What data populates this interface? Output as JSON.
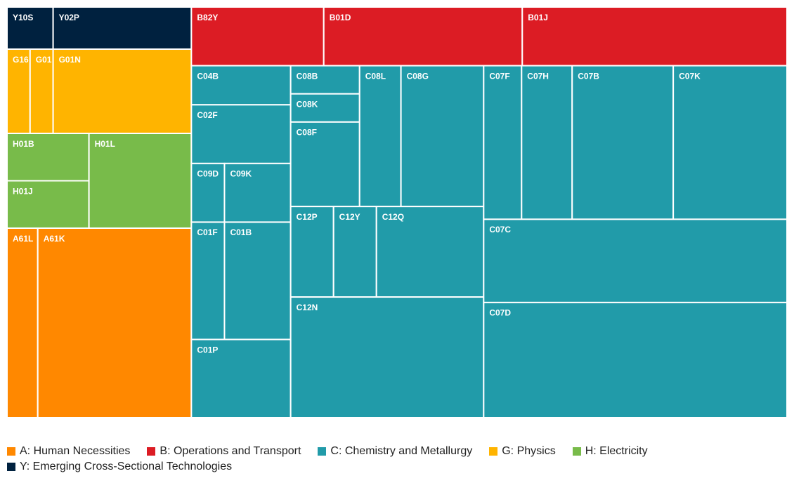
{
  "chart_data": {
    "type": "treemap",
    "series": [
      {
        "name": "A: Human Necessities",
        "color": "#ff8800",
        "labels": [
          "A61L",
          "A61K"
        ],
        "values": [
          3,
          15
        ]
      },
      {
        "name": "B: Operations and Transport",
        "color": "#dc1c24",
        "labels": [
          "B82Y",
          "B01D",
          "B01J"
        ],
        "values": [
          4,
          6,
          8
        ]
      },
      {
        "name": "C: Chemistry and Metallurgy",
        "color": "#219ba9",
        "labels": [
          "C04B",
          "C02F",
          "C09D",
          "C09K",
          "C01F",
          "C01B",
          "C01P",
          "C08B",
          "C08K",
          "C08F",
          "C08L",
          "C08G",
          "C12P",
          "C12Y",
          "C12Q",
          "C12N",
          "C07F",
          "C07H",
          "C07B",
          "C07K",
          "C07C",
          "C07D"
        ],
        "values": [
          2,
          3,
          1,
          2,
          2,
          4,
          4,
          1,
          1,
          3,
          3,
          6,
          2,
          2,
          5,
          12,
          3,
          4,
          8,
          9,
          13,
          18
        ]
      },
      {
        "name": "G: Physics",
        "color": "#ffb400",
        "labels": [
          "G16",
          "G01",
          "G01N"
        ],
        "values": [
          1,
          1,
          6
        ]
      },
      {
        "name": "H: Electricity",
        "color": "#78bb4a",
        "labels": [
          "H01B",
          "H01J",
          "H01L"
        ],
        "values": [
          2,
          2,
          5
        ]
      },
      {
        "name": "Y: Emerging Cross-Sectional Technologies",
        "color": "#00213f",
        "labels": [
          "Y10S",
          "Y02P"
        ],
        "values": [
          1,
          3
        ]
      }
    ]
  }
}
